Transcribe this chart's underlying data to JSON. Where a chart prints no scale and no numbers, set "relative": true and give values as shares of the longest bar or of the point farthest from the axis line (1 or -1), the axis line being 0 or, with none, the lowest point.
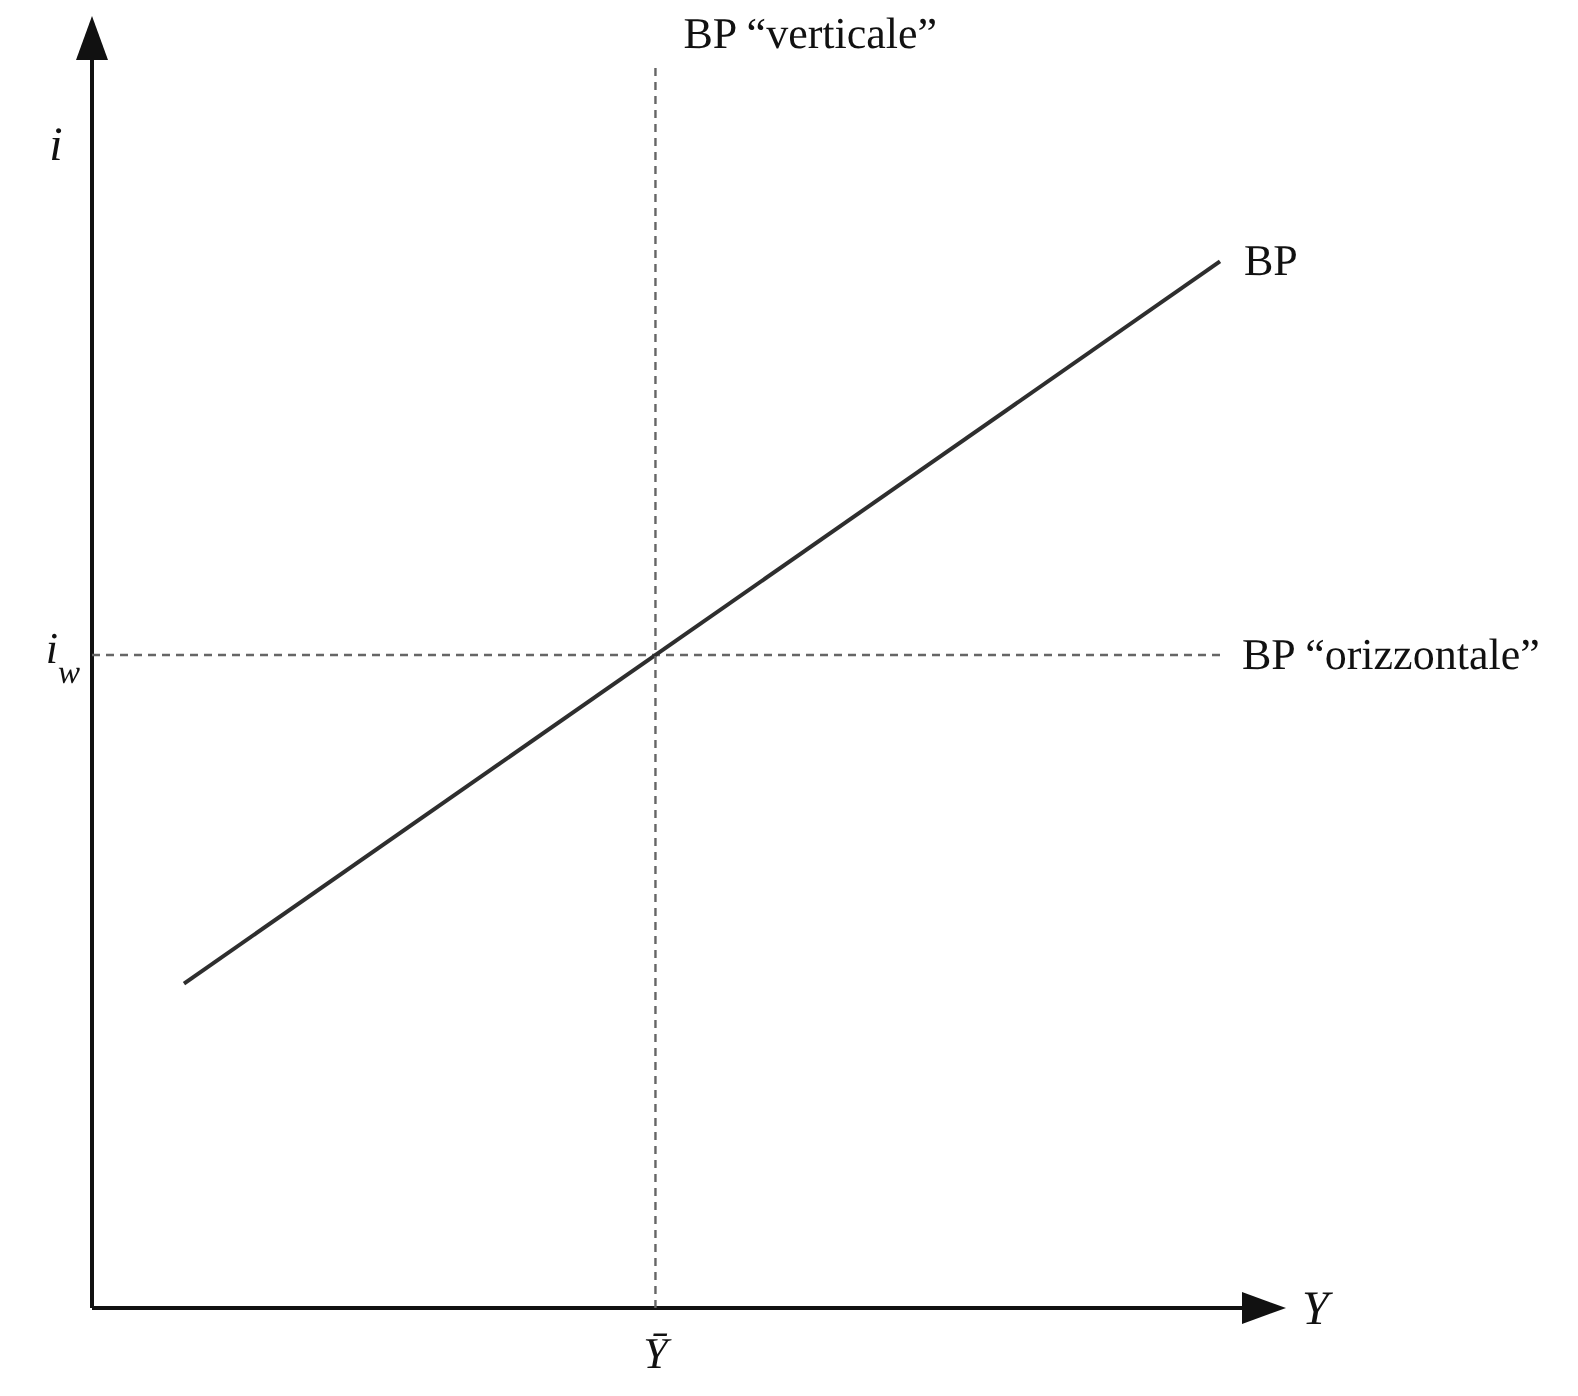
{
  "chart_data": {
    "type": "line",
    "relative": true,
    "categories": [
      null,
      null
    ],
    "series": [
      {
        "name": "BP",
        "color": "#2e2e2e",
        "values": [
          0.31,
          1
        ]
      }
    ],
    "xlabel": "Y",
    "ylabel": "i",
    "ref_lines": [
      {
        "axis": "y",
        "value": 0.624,
        "label": "BP “orizzontale”",
        "line_style": "dashed",
        "color": "#666666"
      }
    ],
    "annotations": [
      "i$_{w}$",
      "Ȳ",
      "BP “verticale”"
    ]
  }
}
